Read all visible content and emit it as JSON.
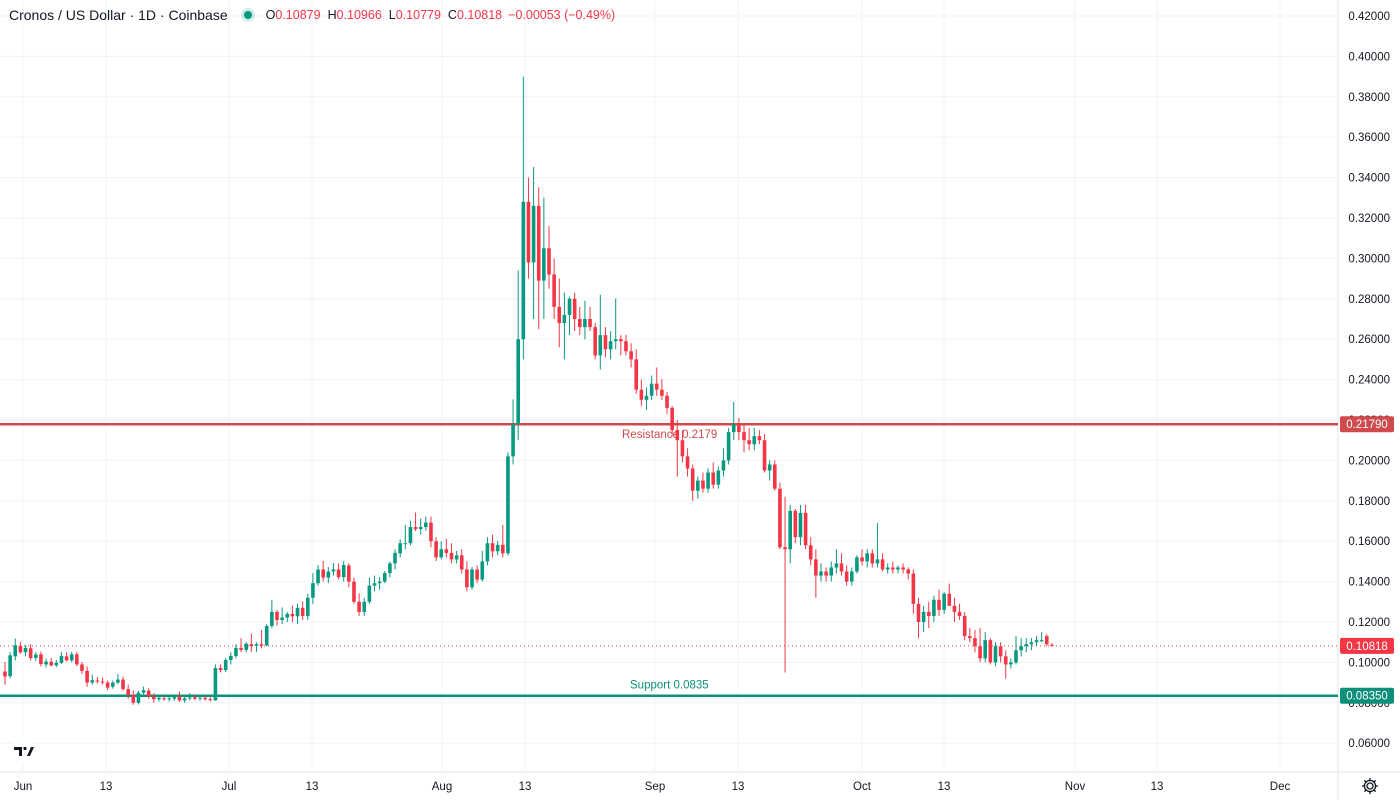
{
  "header": {
    "title": "Cronos / US Dollar · 1D · Coinbase",
    "o_label": "O",
    "o_value": "0.10879",
    "h_label": "H",
    "h_value": "0.10966",
    "l_label": "L",
    "l_value": "0.10779",
    "c_label": "C",
    "c_value": "0.10818",
    "change": "−0.00053 (−0.49%)"
  },
  "icons": {
    "logo": "tradingview-logo-icon",
    "settings": "gear-icon",
    "status": "market-status-dot-icon"
  },
  "colors": {
    "up": "#089981",
    "down": "#f23645",
    "resistance": "#cf4a4d",
    "support": "#0e8f79",
    "grid": "#f0f3fa",
    "text": "#131722"
  },
  "chart_data": {
    "type": "candlestick",
    "title": "Cronos / US Dollar · 1D · Coinbase",
    "ylim": [
      0.05,
      0.42
    ],
    "y_ticks": [
      "0.06000",
      "0.08000",
      "0.10000",
      "0.12000",
      "0.14000",
      "0.16000",
      "0.18000",
      "0.20000",
      "0.22000",
      "0.24000",
      "0.26000",
      "0.28000",
      "0.30000",
      "0.32000",
      "0.34000",
      "0.36000",
      "0.38000",
      "0.40000",
      "0.42000"
    ],
    "x_ticks": [
      "Jun",
      "13",
      "Jul",
      "13",
      "Aug",
      "13",
      "Sep",
      "13",
      "Oct",
      "13",
      "Nov",
      "13",
      "Dec"
    ],
    "last_price": 0.10818,
    "last_price_label": "0.10818",
    "levels": [
      {
        "name": "Resistance",
        "value": 0.2179,
        "label": "Resistance 0.2179",
        "axis_label": "0.21790",
        "color": "#cf4a4d"
      },
      {
        "name": "Support",
        "value": 0.0835,
        "label": "Support 0.0835",
        "axis_label": "0.08350",
        "color": "#0e8f79"
      }
    ],
    "candles": [
      [
        0.0955,
        0.1002,
        0.089,
        0.093
      ],
      [
        0.0932,
        0.1051,
        0.0921,
        0.1035
      ],
      [
        0.103,
        0.1118,
        0.101,
        0.1085
      ],
      [
        0.1082,
        0.1103,
        0.1042,
        0.105
      ],
      [
        0.105,
        0.1085,
        0.103,
        0.1072
      ],
      [
        0.107,
        0.109,
        0.101,
        0.1022
      ],
      [
        0.1022,
        0.1051,
        0.1008,
        0.1039
      ],
      [
        0.104,
        0.1054,
        0.098,
        0.0992
      ],
      [
        0.099,
        0.102,
        0.0975,
        0.1004
      ],
      [
        0.1003,
        0.1022,
        0.098,
        0.0985
      ],
      [
        0.0986,
        0.1011,
        0.0976,
        0.0998
      ],
      [
        0.0998,
        0.1052,
        0.0992,
        0.1032
      ],
      [
        0.103,
        0.105,
        0.1005,
        0.101
      ],
      [
        0.101,
        0.1052,
        0.1,
        0.104
      ],
      [
        0.104,
        0.1052,
        0.0982,
        0.099
      ],
      [
        0.099,
        0.1002,
        0.0942,
        0.0958
      ],
      [
        0.0958,
        0.098,
        0.088,
        0.09
      ],
      [
        0.09,
        0.094,
        0.089,
        0.0912
      ],
      [
        0.091,
        0.0928,
        0.0895,
        0.0905
      ],
      [
        0.0905,
        0.0925,
        0.089,
        0.09
      ],
      [
        0.09,
        0.091,
        0.0862,
        0.0875
      ],
      [
        0.088,
        0.091,
        0.087,
        0.09
      ],
      [
        0.09,
        0.0942,
        0.0892,
        0.0915
      ],
      [
        0.0915,
        0.093,
        0.086,
        0.0868
      ],
      [
        0.0868,
        0.089,
        0.082,
        0.084
      ],
      [
        0.084,
        0.0862,
        0.079,
        0.08
      ],
      [
        0.08,
        0.086,
        0.0792,
        0.085
      ],
      [
        0.085,
        0.088,
        0.0836,
        0.0862
      ],
      [
        0.086,
        0.0872,
        0.082,
        0.0832
      ],
      [
        0.0832,
        0.0848,
        0.08,
        0.0818
      ],
      [
        0.0818,
        0.0832,
        0.0806,
        0.0825
      ],
      [
        0.0822,
        0.0832,
        0.081,
        0.0818
      ],
      [
        0.0818,
        0.0836,
        0.0806,
        0.0822
      ],
      [
        0.082,
        0.0836,
        0.081,
        0.0828
      ],
      [
        0.083,
        0.0856,
        0.0805,
        0.0812
      ],
      [
        0.0812,
        0.0832,
        0.08,
        0.0822
      ],
      [
        0.0822,
        0.0848,
        0.0812,
        0.0826
      ],
      [
        0.0828,
        0.0842,
        0.0812,
        0.082
      ],
      [
        0.082,
        0.084,
        0.081,
        0.0825
      ],
      [
        0.0825,
        0.0832,
        0.081,
        0.0818
      ],
      [
        0.0818,
        0.0828,
        0.0806,
        0.0814
      ],
      [
        0.0812,
        0.099,
        0.081,
        0.0972
      ],
      [
        0.0972,
        0.099,
        0.095,
        0.0962
      ],
      [
        0.0962,
        0.1022,
        0.0952,
        0.1012
      ],
      [
        0.1012,
        0.105,
        0.099,
        0.1032
      ],
      [
        0.1032,
        0.109,
        0.102,
        0.1072
      ],
      [
        0.1072,
        0.112,
        0.105,
        0.1062
      ],
      [
        0.1062,
        0.1102,
        0.105,
        0.1092
      ],
      [
        0.109,
        0.1142,
        0.1052,
        0.1082
      ],
      [
        0.1082,
        0.11,
        0.1052,
        0.109
      ],
      [
        0.109,
        0.116,
        0.107,
        0.1084
      ],
      [
        0.1084,
        0.119,
        0.108,
        0.118
      ],
      [
        0.118,
        0.131,
        0.117,
        0.125
      ],
      [
        0.125,
        0.126,
        0.1182,
        0.121
      ],
      [
        0.121,
        0.1272,
        0.119,
        0.1222
      ],
      [
        0.1222,
        0.125,
        0.12,
        0.124
      ],
      [
        0.124,
        0.1282,
        0.12,
        0.1228
      ],
      [
        0.1228,
        0.129,
        0.119,
        0.127
      ],
      [
        0.127,
        0.1302,
        0.121,
        0.123
      ],
      [
        0.123,
        0.134,
        0.121,
        0.132
      ],
      [
        0.132,
        0.1442,
        0.129,
        0.1392
      ],
      [
        0.1392,
        0.1482,
        0.138,
        0.146
      ],
      [
        0.146,
        0.1502,
        0.14,
        0.142
      ],
      [
        0.142,
        0.1472,
        0.1392,
        0.145
      ],
      [
        0.145,
        0.1492,
        0.143,
        0.146
      ],
      [
        0.146,
        0.149,
        0.141,
        0.1422
      ],
      [
        0.1422,
        0.1502,
        0.14,
        0.1482
      ],
      [
        0.148,
        0.149,
        0.1372,
        0.14
      ],
      [
        0.14,
        0.142,
        0.129,
        0.13
      ],
      [
        0.13,
        0.1342,
        0.123,
        0.125
      ],
      [
        0.125,
        0.132,
        0.123,
        0.13
      ],
      [
        0.13,
        0.142,
        0.129,
        0.138
      ],
      [
        0.138,
        0.143,
        0.1352,
        0.1392
      ],
      [
        0.1392,
        0.1422,
        0.136,
        0.14
      ],
      [
        0.14,
        0.1452,
        0.1392,
        0.1442
      ],
      [
        0.1442,
        0.15,
        0.142,
        0.149
      ],
      [
        0.149,
        0.156,
        0.146,
        0.1542
      ],
      [
        0.154,
        0.161,
        0.152,
        0.159
      ],
      [
        0.159,
        0.168,
        0.156,
        0.159
      ],
      [
        0.159,
        0.1702,
        0.158,
        0.167
      ],
      [
        0.167,
        0.1742,
        0.165,
        0.166
      ],
      [
        0.166,
        0.1712,
        0.1632,
        0.167
      ],
      [
        0.167,
        0.1722,
        0.1652,
        0.1692
      ],
      [
        0.1692,
        0.1722,
        0.157,
        0.16
      ],
      [
        0.16,
        0.162,
        0.1502,
        0.152
      ],
      [
        0.152,
        0.16,
        0.151,
        0.156
      ],
      [
        0.156,
        0.1612,
        0.152,
        0.1542
      ],
      [
        0.1542,
        0.159,
        0.149,
        0.151
      ],
      [
        0.151,
        0.1552,
        0.149,
        0.153
      ],
      [
        0.153,
        0.156,
        0.144,
        0.146
      ],
      [
        0.146,
        0.15,
        0.1352,
        0.1372
      ],
      [
        0.1372,
        0.1472,
        0.136,
        0.146
      ],
      [
        0.146,
        0.148,
        0.1392,
        0.141
      ],
      [
        0.141,
        0.1552,
        0.14,
        0.15
      ],
      [
        0.15,
        0.162,
        0.148,
        0.159
      ],
      [
        0.159,
        0.1632,
        0.152,
        0.155
      ],
      [
        0.155,
        0.1602,
        0.153,
        0.1582
      ],
      [
        0.1582,
        0.168,
        0.152,
        0.154
      ],
      [
        0.154,
        0.204,
        0.153,
        0.202
      ],
      [
        0.202,
        0.2302,
        0.198,
        0.218
      ],
      [
        0.218,
        0.294,
        0.21,
        0.26
      ],
      [
        0.26,
        0.39,
        0.25,
        0.328
      ],
      [
        0.328,
        0.34,
        0.29,
        0.298
      ],
      [
        0.298,
        0.3452,
        0.27,
        0.326
      ],
      [
        0.326,
        0.3352,
        0.265,
        0.289
      ],
      [
        0.289,
        0.3302,
        0.27,
        0.305
      ],
      [
        0.305,
        0.316,
        0.285,
        0.292
      ],
      [
        0.292,
        0.3,
        0.27,
        0.276
      ],
      [
        0.276,
        0.29,
        0.256,
        0.268
      ],
      [
        0.268,
        0.283,
        0.25,
        0.272
      ],
      [
        0.272,
        0.281,
        0.262,
        0.28
      ],
      [
        0.28,
        0.283,
        0.264,
        0.27
      ],
      [
        0.27,
        0.276,
        0.262,
        0.266
      ],
      [
        0.266,
        0.279,
        0.26,
        0.27
      ],
      [
        0.27,
        0.276,
        0.264,
        0.266
      ],
      [
        0.266,
        0.268,
        0.25,
        0.252
      ],
      [
        0.252,
        0.282,
        0.245,
        0.262
      ],
      [
        0.262,
        0.266,
        0.251,
        0.255
      ],
      [
        0.255,
        0.264,
        0.25,
        0.259
      ],
      [
        0.259,
        0.2802,
        0.255,
        0.26
      ],
      [
        0.26,
        0.262,
        0.252,
        0.259
      ],
      [
        0.259,
        0.2622,
        0.252,
        0.254
      ],
      [
        0.254,
        0.258,
        0.246,
        0.25
      ],
      [
        0.25,
        0.255,
        0.233,
        0.235
      ],
      [
        0.235,
        0.24,
        0.227,
        0.23
      ],
      [
        0.23,
        0.236,
        0.225,
        0.232
      ],
      [
        0.232,
        0.242,
        0.23,
        0.238
      ],
      [
        0.238,
        0.246,
        0.232,
        0.235
      ],
      [
        0.235,
        0.2402,
        0.23,
        0.232
      ],
      [
        0.232,
        0.234,
        0.223,
        0.226
      ],
      [
        0.226,
        0.227,
        0.212,
        0.215
      ],
      [
        0.215,
        0.22,
        0.192,
        0.21
      ],
      [
        0.21,
        0.215,
        0.199,
        0.202
      ],
      [
        0.202,
        0.206,
        0.192,
        0.196
      ],
      [
        0.196,
        0.198,
        0.18,
        0.185
      ],
      [
        0.185,
        0.192,
        0.181,
        0.19
      ],
      [
        0.19,
        0.194,
        0.184,
        0.186
      ],
      [
        0.186,
        0.196,
        0.184,
        0.194
      ],
      [
        0.194,
        0.199,
        0.186,
        0.188
      ],
      [
        0.188,
        0.197,
        0.186,
        0.195
      ],
      [
        0.195,
        0.206,
        0.192,
        0.2
      ],
      [
        0.2,
        0.216,
        0.198,
        0.214
      ],
      [
        0.214,
        0.229,
        0.21,
        0.218
      ],
      [
        0.218,
        0.221,
        0.21,
        0.214
      ],
      [
        0.214,
        0.218,
        0.204,
        0.21
      ],
      [
        0.21,
        0.216,
        0.205,
        0.208
      ],
      [
        0.208,
        0.216,
        0.205,
        0.212
      ],
      [
        0.212,
        0.215,
        0.208,
        0.21
      ],
      [
        0.21,
        0.213,
        0.194,
        0.195
      ],
      [
        0.195,
        0.2,
        0.19,
        0.198
      ],
      [
        0.198,
        0.2,
        0.185,
        0.186
      ],
      [
        0.186,
        0.189,
        0.156,
        0.157
      ],
      [
        0.157,
        0.182,
        0.095,
        0.156
      ],
      [
        0.156,
        0.178,
        0.149,
        0.175
      ],
      [
        0.175,
        0.176,
        0.159,
        0.162
      ],
      [
        0.162,
        0.178,
        0.158,
        0.174
      ],
      [
        0.174,
        0.178,
        0.156,
        0.158
      ],
      [
        0.158,
        0.162,
        0.148,
        0.151
      ],
      [
        0.151,
        0.156,
        0.132,
        0.143
      ],
      [
        0.143,
        0.149,
        0.14,
        0.145
      ],
      [
        0.145,
        0.147,
        0.14,
        0.143
      ],
      [
        0.143,
        0.15,
        0.14,
        0.147
      ],
      [
        0.147,
        0.156,
        0.144,
        0.149
      ],
      [
        0.149,
        0.154,
        0.143,
        0.145
      ],
      [
        0.145,
        0.148,
        0.138,
        0.14
      ],
      [
        0.14,
        0.147,
        0.138,
        0.145
      ],
      [
        0.145,
        0.153,
        0.144,
        0.152
      ],
      [
        0.152,
        0.156,
        0.148,
        0.15
      ],
      [
        0.15,
        0.156,
        0.147,
        0.154
      ],
      [
        0.154,
        0.156,
        0.147,
        0.149
      ],
      [
        0.149,
        0.169,
        0.147,
        0.151
      ],
      [
        0.151,
        0.154,
        0.145,
        0.146
      ],
      [
        0.146,
        0.149,
        0.144,
        0.147
      ],
      [
        0.147,
        0.15,
        0.144,
        0.146
      ],
      [
        0.146,
        0.148,
        0.144,
        0.147
      ],
      [
        0.147,
        0.149,
        0.144,
        0.146
      ],
      [
        0.146,
        0.147,
        0.141,
        0.144
      ],
      [
        0.144,
        0.146,
        0.124,
        0.129
      ],
      [
        0.129,
        0.132,
        0.112,
        0.12
      ],
      [
        0.12,
        0.128,
        0.115,
        0.125
      ],
      [
        0.125,
        0.13,
        0.117,
        0.123
      ],
      [
        0.123,
        0.133,
        0.12,
        0.131
      ],
      [
        0.131,
        0.136,
        0.123,
        0.126
      ],
      [
        0.126,
        0.135,
        0.124,
        0.134
      ],
      [
        0.134,
        0.139,
        0.128,
        0.128
      ],
      [
        0.128,
        0.132,
        0.12,
        0.125
      ],
      [
        0.125,
        0.129,
        0.121,
        0.123
      ],
      [
        0.123,
        0.125,
        0.111,
        0.113
      ],
      [
        0.113,
        0.117,
        0.11,
        0.112
      ],
      [
        0.112,
        0.116,
        0.105,
        0.108
      ],
      [
        0.108,
        0.117,
        0.1,
        0.102
      ],
      [
        0.102,
        0.115,
        0.1,
        0.111
      ],
      [
        0.111,
        0.112,
        0.099,
        0.1
      ],
      [
        0.1,
        0.11,
        0.098,
        0.108
      ],
      [
        0.108,
        0.11,
        0.1,
        0.103
      ],
      [
        0.103,
        0.106,
        0.092,
        0.099
      ],
      [
        0.099,
        0.102,
        0.097,
        0.1
      ],
      [
        0.1,
        0.113,
        0.099,
        0.106
      ],
      [
        0.106,
        0.112,
        0.103,
        0.108
      ],
      [
        0.108,
        0.112,
        0.105,
        0.109
      ],
      [
        0.109,
        0.112,
        0.106,
        0.11
      ],
      [
        0.11,
        0.113,
        0.108,
        0.111
      ],
      [
        0.111,
        0.115,
        0.11,
        0.111
      ],
      [
        0.113,
        0.114,
        0.108,
        0.109
      ],
      [
        0.1087,
        0.1097,
        0.1078,
        0.1082
      ]
    ]
  }
}
